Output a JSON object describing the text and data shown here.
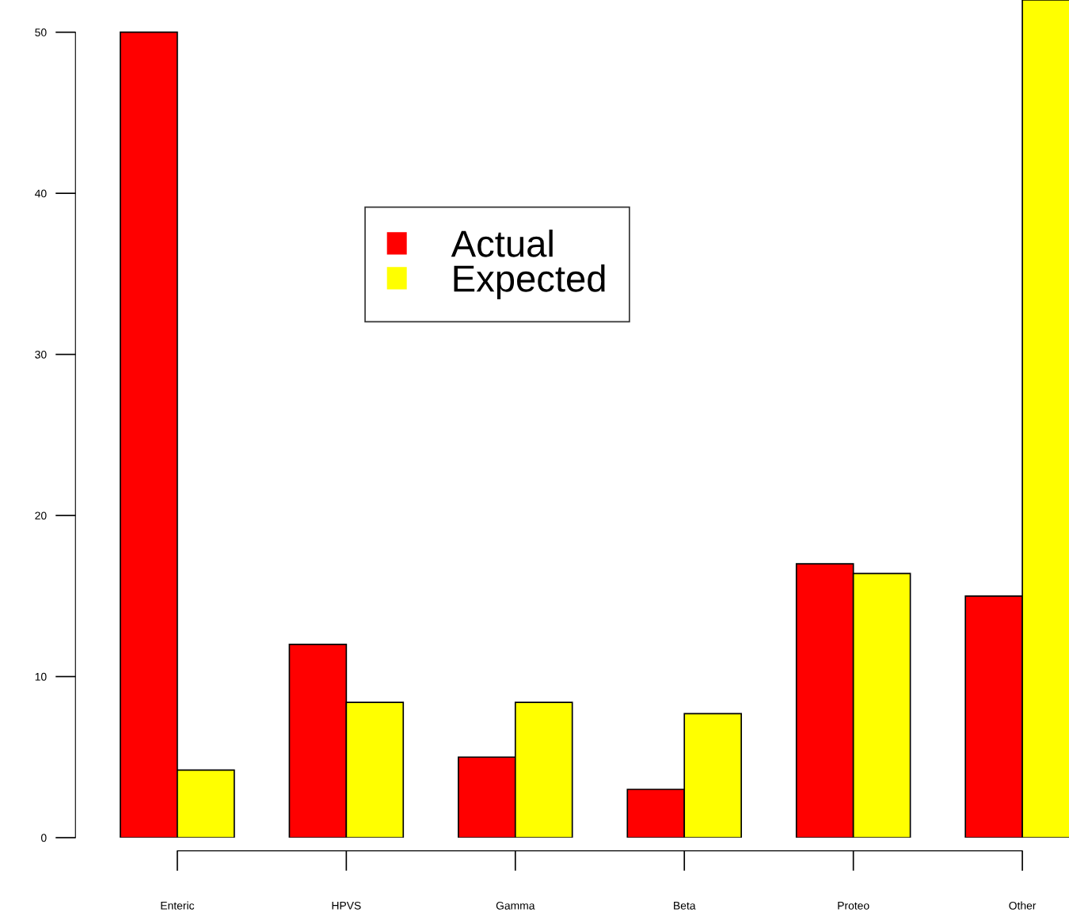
{
  "chart_data": {
    "type": "bar",
    "categories": [
      "Enteric",
      "HPVS",
      "Gamma",
      "Beta",
      "Proteo",
      "Other"
    ],
    "series": [
      {
        "name": "Actual",
        "color": "#ff0000",
        "values": [
          50,
          12,
          5,
          3,
          17,
          15
        ]
      },
      {
        "name": "Expected",
        "color": "#ffff00",
        "values": [
          4.2,
          8.4,
          8.4,
          7.7,
          16.4,
          52
        ]
      }
    ],
    "ylim": [
      0,
      52
    ],
    "yticks": [
      0,
      10,
      20,
      30,
      40,
      50
    ],
    "grid": false,
    "legend": "top center"
  }
}
